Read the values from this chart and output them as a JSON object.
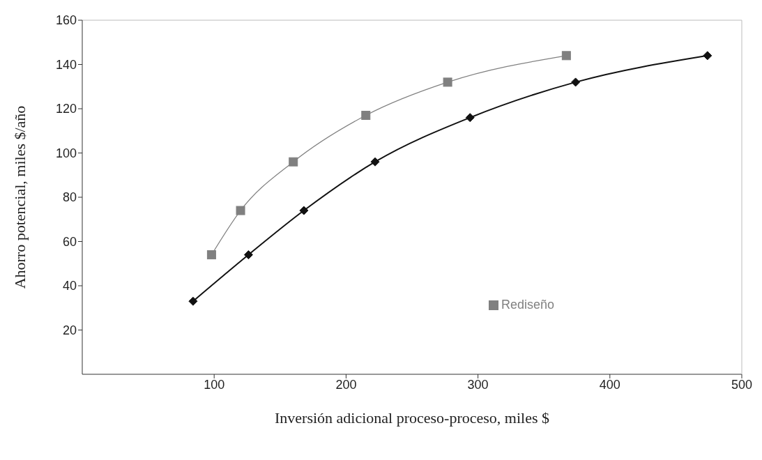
{
  "chart_data": {
    "type": "line",
    "xlabel": "Inversión adicional proceso-proceso,  miles $",
    "ylabel": "Ahorro potencial, miles $/año",
    "xlim": [
      0,
      500
    ],
    "xticks": [
      100,
      200,
      300,
      400,
      500
    ],
    "ylim": [
      0,
      160
    ],
    "yticks": [
      20,
      40,
      60,
      80,
      100,
      120,
      140,
      160
    ],
    "grid": false,
    "legend": "bottom right",
    "series": [
      {
        "name": "Rediseño",
        "color": "#808080",
        "marker": "square",
        "x": [
          98,
          120,
          160,
          215,
          277,
          367
        ],
        "values": [
          54,
          74,
          96,
          117,
          132,
          144
        ]
      },
      {
        "color": "#111111",
        "marker": "diamond",
        "x": [
          84,
          126,
          168,
          222,
          294,
          374,
          474
        ],
        "values": [
          33,
          54,
          74,
          96,
          116,
          132,
          144
        ]
      }
    ]
  }
}
